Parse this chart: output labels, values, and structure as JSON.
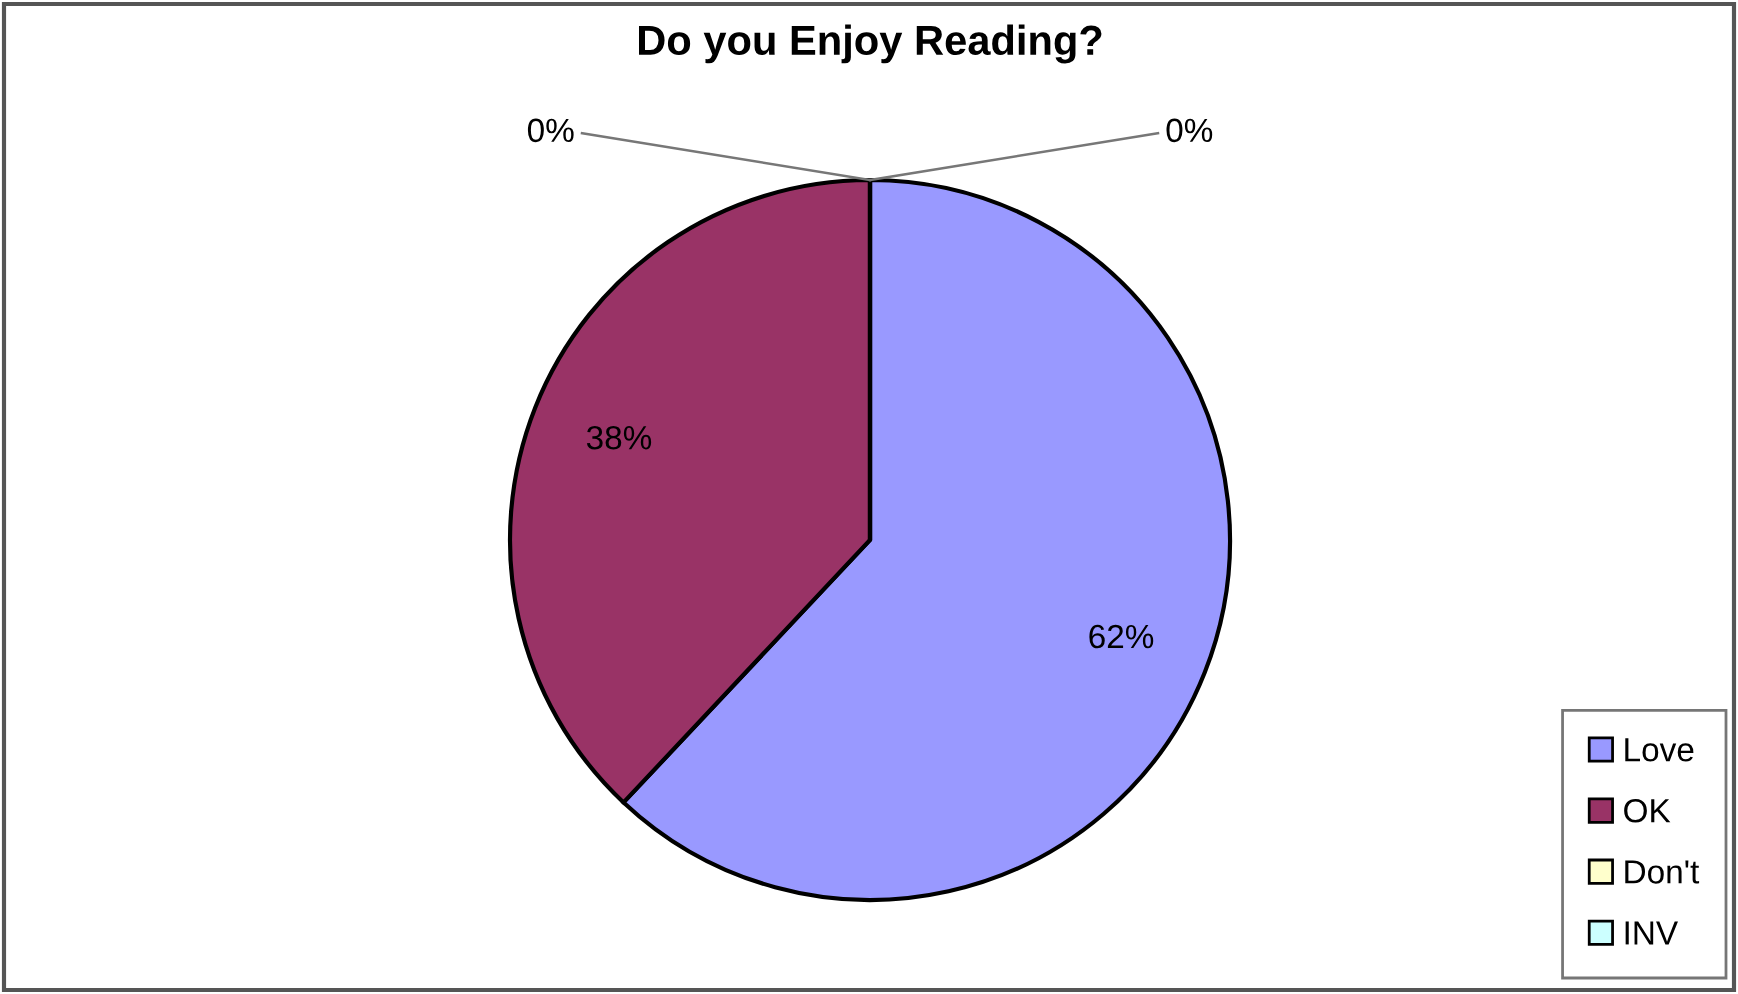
{
  "chart_data": {
    "type": "pie",
    "title": "Do you Enjoy Reading?",
    "categories": [
      "Love",
      "OK",
      "Don't",
      "INV"
    ],
    "values": [
      62,
      38,
      0,
      0
    ],
    "value_labels": [
      "62%",
      "38%",
      "0%",
      "0%"
    ],
    "colors": [
      "#9999ff",
      "#993366",
      "#ffffcc",
      "#ccffff"
    ],
    "legend": "bottom right"
  }
}
